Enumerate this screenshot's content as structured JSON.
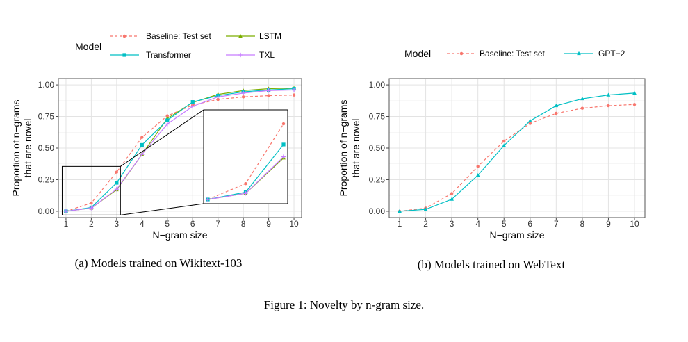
{
  "figure_caption": "Figure 1:  Novelty by n-gram size.",
  "chart_data": [
    {
      "type": "line",
      "caption": "(a) Models trained on Wikitext-103",
      "legend_title": "Model",
      "xlabel": "N−gram size",
      "ylabel_lines": [
        "Proportion of n−grams",
        "that are novel"
      ],
      "x": [
        1,
        2,
        3,
        4,
        5,
        6,
        7,
        8,
        9,
        10
      ],
      "xlim": [
        0.7,
        10.3
      ],
      "ylim": [
        -0.05,
        1.05
      ],
      "yticks": [
        0,
        0.25,
        0.5,
        0.75,
        1.0
      ],
      "ytick_labels": [
        "0.00",
        "0.25",
        "0.50",
        "0.75",
        "1.00"
      ],
      "grid": true,
      "series": [
        {
          "name": "Baseline: Test set",
          "color": "#F8766D",
          "dashed": true,
          "marker": "circle",
          "values": [
            0.0,
            0.065,
            0.31,
            0.585,
            0.755,
            0.84,
            0.885,
            0.905,
            0.915,
            0.92
          ]
        },
        {
          "name": "LSTM",
          "color": "#7CAE00",
          "dashed": false,
          "marker": "triangle",
          "values": [
            0.0,
            0.025,
            0.17,
            0.45,
            0.735,
            0.86,
            0.925,
            0.955,
            0.97,
            0.975
          ]
        },
        {
          "name": "Transformer",
          "color": "#00BFC4",
          "dashed": false,
          "marker": "square",
          "values": [
            0.0,
            0.03,
            0.225,
            0.525,
            0.72,
            0.865,
            0.915,
            0.945,
            0.96,
            0.97
          ]
        },
        {
          "name": "TXL",
          "color": "#C77CFF",
          "dashed": false,
          "marker": "plus",
          "values": [
            0.0,
            0.025,
            0.175,
            0.45,
            0.69,
            0.83,
            0.905,
            0.935,
            0.955,
            0.96
          ]
        }
      ],
      "inset": {
        "xlim": [
          1,
          3
        ],
        "ylim": [
          0,
          0.35
        ]
      }
    },
    {
      "type": "line",
      "caption": "(b) Models trained on WebText",
      "legend_title": "Model",
      "xlabel": "N−gram size",
      "ylabel_lines": [
        "Proportion of n−grams",
        "that are novel"
      ],
      "x": [
        1,
        2,
        3,
        4,
        5,
        6,
        7,
        8,
        9,
        10
      ],
      "xlim": [
        0.6,
        10.4
      ],
      "ylim": [
        -0.05,
        1.05
      ],
      "yticks": [
        0,
        0.25,
        0.5,
        0.75,
        1.0
      ],
      "ytick_labels": [
        "0.00",
        "0.25",
        "0.50",
        "0.75",
        "1.00"
      ],
      "grid": true,
      "series": [
        {
          "name": "Baseline: Test set",
          "color": "#F8766D",
          "dashed": true,
          "marker": "circle",
          "values": [
            0.0,
            0.025,
            0.14,
            0.355,
            0.555,
            0.695,
            0.775,
            0.815,
            0.835,
            0.845
          ]
        },
        {
          "name": "GPT−2",
          "color": "#00BFC4",
          "dashed": false,
          "marker": "triangle",
          "values": [
            0.0,
            0.015,
            0.095,
            0.285,
            0.52,
            0.715,
            0.835,
            0.89,
            0.92,
            0.935
          ]
        }
      ]
    }
  ]
}
